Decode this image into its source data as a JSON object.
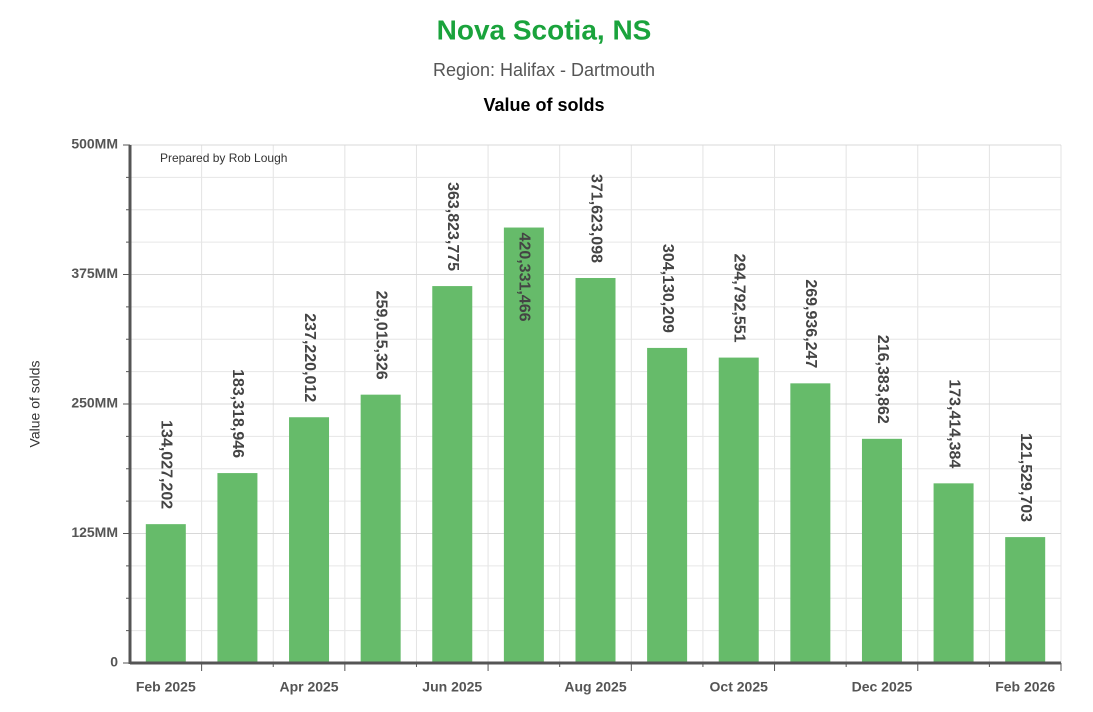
{
  "chart_data": {
    "type": "bar",
    "title": "Nova Scotia, NS",
    "subtitle": "Region: Halifax - Dartmouth",
    "chart_title": "Value of solds",
    "y_label": "Value of solds",
    "annotation": "Prepared by Rob Lough",
    "categories": [
      "Feb 2025",
      null,
      "Apr 2025",
      null,
      "Jun 2025",
      null,
      "Aug 2025",
      null,
      "Oct 2025",
      null,
      "Dec 2025",
      null,
      "Feb 2026"
    ],
    "values": [
      134027202,
      183318946,
      237220012,
      259015326,
      363823775,
      420331466,
      371623098,
      304130209,
      294792551,
      269936247,
      216383862,
      173414384,
      121529703
    ],
    "value_labels": [
      "134,027,202",
      "183,318,946",
      "237,220,012",
      "259,015,326",
      "363,823,775",
      "420,331,466",
      "371,623,098",
      "304,130,209",
      "294,792,551",
      "269,936,247",
      "216,383,862",
      "173,414,384",
      "121,529,703"
    ],
    "color": "#66bb6a",
    "ylim": [
      0,
      500000000
    ],
    "yticks": [
      0,
      {
        "value": 125000000,
        "label": "125MM"
      },
      {
        "value": 250000000,
        "label": "250MM"
      },
      {
        "value": 375000000,
        "label": "375MM"
      },
      {
        "value": 500000000,
        "label": "500MM"
      }
    ],
    "minor_yticks": [
      31250000,
      62500000,
      93750000,
      156250000,
      187500000,
      218750000,
      281250000,
      312500000,
      343750000,
      406250000,
      437500000,
      468750000
    ],
    "grid": true
  }
}
